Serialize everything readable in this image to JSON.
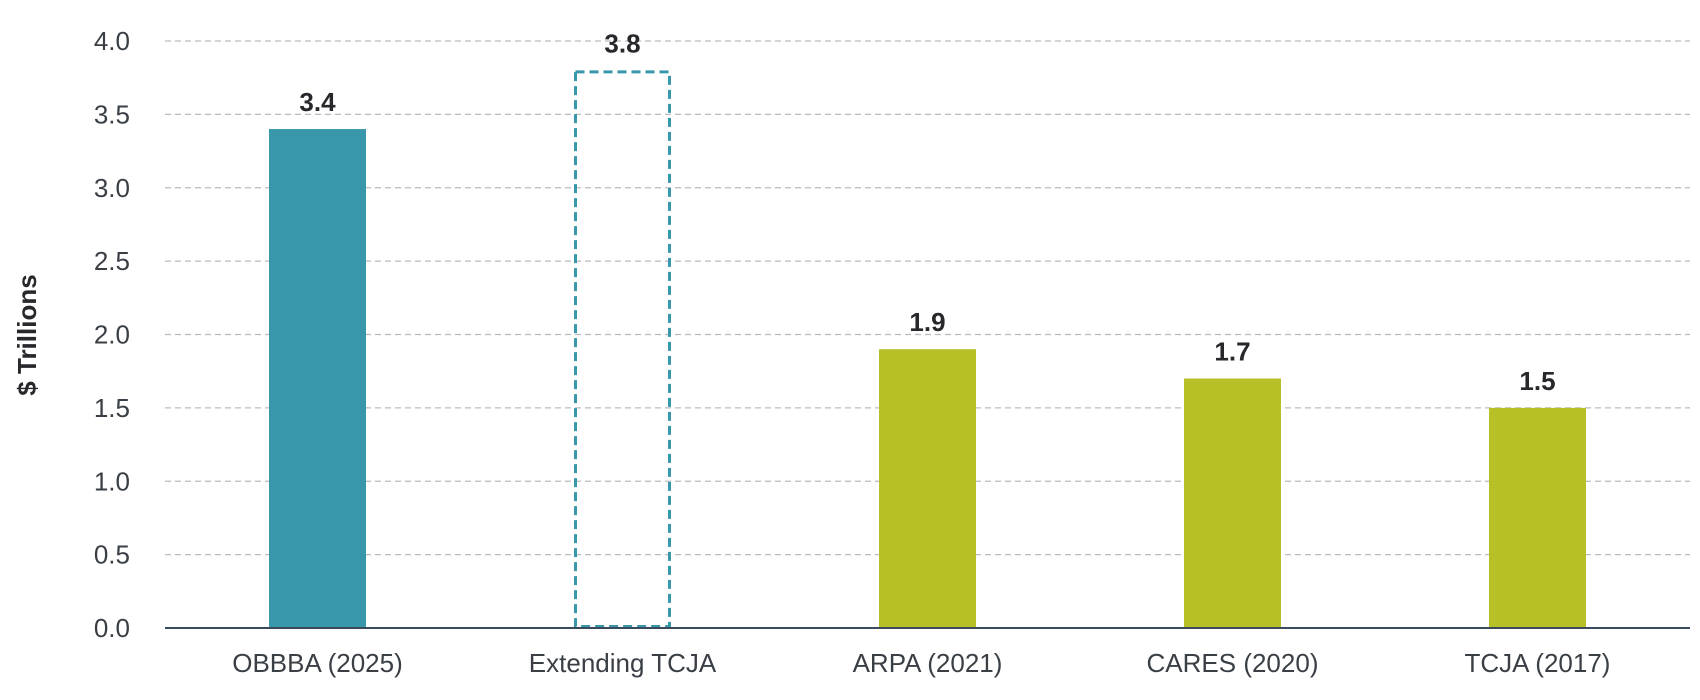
{
  "chart_data": {
    "type": "bar",
    "title": "",
    "xlabel": "",
    "ylabel": "$ Trillions",
    "ylim": [
      0,
      4.0
    ],
    "yticks": [
      "0.0",
      "0.5",
      "1.0",
      "1.5",
      "2.0",
      "2.5",
      "3.0",
      "3.5",
      "4.0"
    ],
    "grid": true,
    "legend": "none",
    "categories": [
      "OBBBA (2025)",
      "Extending TCJA",
      "ARPA (2021)",
      "CARES (2020)",
      "TCJA (2017)"
    ],
    "values": [
      3.4,
      3.8,
      1.9,
      1.7,
      1.5
    ],
    "value_labels": [
      "3.4",
      "3.8",
      "1.9",
      "1.7",
      "1.5"
    ],
    "bar_styles": [
      "solid",
      "dashed-outline",
      "solid",
      "solid",
      "solid"
    ],
    "colors": {
      "teal": "#3997ab",
      "olive": "#b8c028",
      "bar_colors": [
        "#3997ab",
        "#3997ab",
        "#b8c028",
        "#b8c028",
        "#b8c028"
      ]
    }
  }
}
